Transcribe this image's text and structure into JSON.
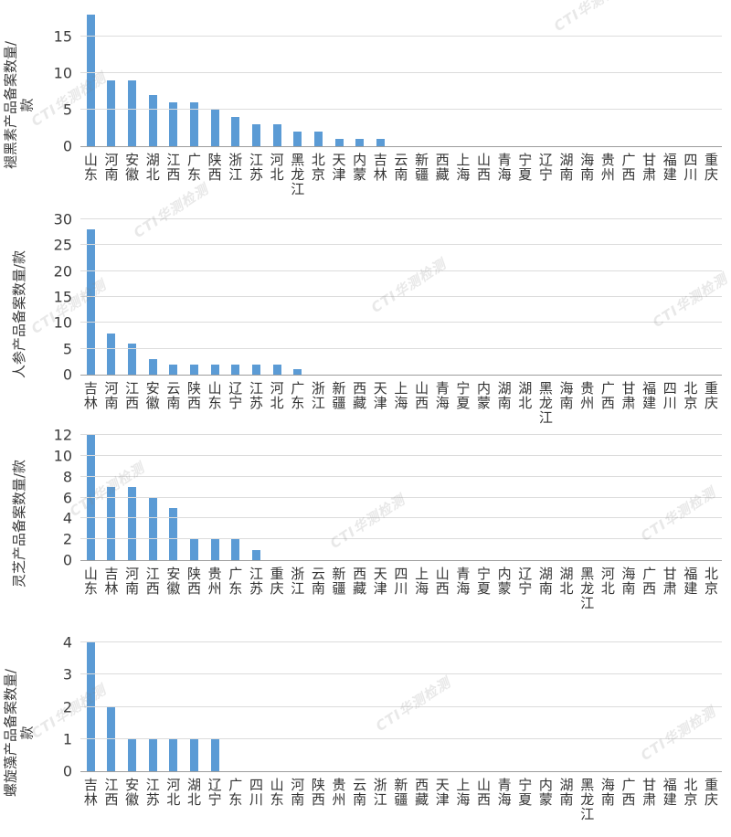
{
  "watermark": {
    "text": "CTI华测检测"
  },
  "chart_data": [
    {
      "type": "bar",
      "title": "",
      "ylabel": "褪黑素产品备案数量/\n款",
      "categories": [
        "山东",
        "河南",
        "安徽",
        "湖北",
        "江西",
        "广东",
        "陕西",
        "浙江",
        "江苏",
        "河北",
        "黑龙江",
        "北京",
        "天津",
        "内蒙",
        "吉林",
        "云南",
        "新疆",
        "西藏",
        "上海",
        "山西",
        "青海",
        "宁夏",
        "辽宁",
        "湖南",
        "海南",
        "贵州",
        "广西",
        "甘肃",
        "福建",
        "四川",
        "重庆"
      ],
      "values": [
        18,
        9,
        9,
        7,
        6,
        6,
        5,
        4,
        3,
        3,
        2,
        2,
        1,
        1,
        1,
        0,
        0,
        0,
        0,
        0,
        0,
        0,
        0,
        0,
        0,
        0,
        0,
        0,
        0,
        0,
        0
      ],
      "ylim": [
        0,
        18
      ],
      "yticks": [
        0,
        5,
        10,
        15
      ],
      "grid": true,
      "legend": "none",
      "bar_color": "#5B9BD5"
    },
    {
      "type": "bar",
      "title": "",
      "ylabel": "人参产品备案数量/款",
      "categories": [
        "吉林",
        "河南",
        "江西",
        "安徽",
        "云南",
        "陕西",
        "山东",
        "辽宁",
        "江苏",
        "河北",
        "广东",
        "浙江",
        "新疆",
        "西藏",
        "天津",
        "上海",
        "山西",
        "青海",
        "宁夏",
        "内蒙",
        "湖南",
        "湖北",
        "黑龙江",
        "海南",
        "贵州",
        "广西",
        "甘肃",
        "福建",
        "四川",
        "北京",
        "重庆"
      ],
      "values": [
        28,
        8,
        6,
        3,
        2,
        2,
        2,
        2,
        2,
        2,
        1,
        0,
        0,
        0,
        0,
        0,
        0,
        0,
        0,
        0,
        0,
        0,
        0,
        0,
        0,
        0,
        0,
        0,
        0,
        0,
        0
      ],
      "ylim": [
        0,
        30
      ],
      "yticks": [
        0,
        5,
        10,
        15,
        20,
        25,
        30
      ],
      "grid": true,
      "legend": "none",
      "bar_color": "#5B9BD5"
    },
    {
      "type": "bar",
      "title": "",
      "ylabel": "灵芝产品备案数量/款",
      "categories": [
        "山东",
        "吉林",
        "河南",
        "江西",
        "安徽",
        "陕西",
        "贵州",
        "广东",
        "江苏",
        "重庆",
        "浙江",
        "云南",
        "新疆",
        "西藏",
        "天津",
        "四川",
        "上海",
        "山西",
        "青海",
        "宁夏",
        "内蒙",
        "辽宁",
        "湖南",
        "湖北",
        "黑龙江",
        "河北",
        "海南",
        "广西",
        "甘肃",
        "福建",
        "北京"
      ],
      "values": [
        12,
        7,
        7,
        6,
        5,
        2,
        2,
        2,
        1,
        0,
        0,
        0,
        0,
        0,
        0,
        0,
        0,
        0,
        0,
        0,
        0,
        0,
        0,
        0,
        0,
        0,
        0,
        0,
        0,
        0,
        0
      ],
      "ylim": [
        0,
        12
      ],
      "yticks": [
        0,
        2,
        4,
        6,
        8,
        10,
        12
      ],
      "grid": true,
      "legend": "none",
      "bar_color": "#5B9BD5"
    },
    {
      "type": "bar",
      "title": "",
      "ylabel": "螺旋藻产品备案数量/\n款",
      "categories": [
        "吉林",
        "江西",
        "安徽",
        "江苏",
        "河北",
        "湖北",
        "辽宁",
        "广东",
        "四川",
        "山东",
        "河南",
        "陕西",
        "贵州",
        "云南",
        "浙江",
        "新疆",
        "西藏",
        "天津",
        "上海",
        "山西",
        "青海",
        "宁夏",
        "内蒙",
        "湖南",
        "黑龙江",
        "海南",
        "广西",
        "甘肃",
        "福建",
        "北京",
        "重庆"
      ],
      "values": [
        4,
        2,
        1,
        1,
        1,
        1,
        1,
        0,
        0,
        0,
        0,
        0,
        0,
        0,
        0,
        0,
        0,
        0,
        0,
        0,
        0,
        0,
        0,
        0,
        0,
        0,
        0,
        0,
        0,
        0,
        0
      ],
      "ylim": [
        0,
        4
      ],
      "yticks": [
        0,
        1,
        2,
        3,
        4
      ],
      "grid": true,
      "legend": "none",
      "bar_color": "#5B9BD5"
    }
  ],
  "colors": {
    "bar": "#5B9BD5",
    "gridline": "#dcdcdc",
    "axis_line": "#9d9d9d",
    "text": "#3b3b3b"
  }
}
